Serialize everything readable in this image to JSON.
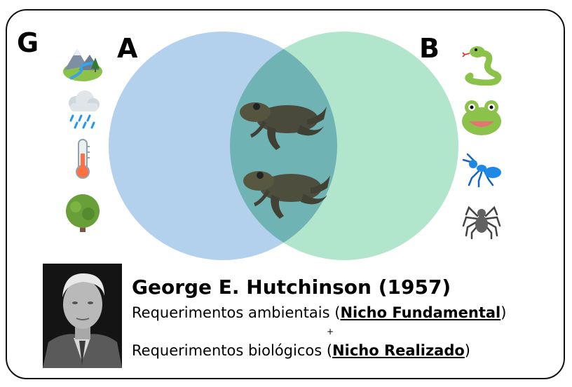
{
  "labels": {
    "g": "G",
    "a": "A",
    "b": "B"
  },
  "colors": {
    "circle_a": "#9dc3e6",
    "circle_b": "#94dfb8",
    "overlap": "#6fb0b0",
    "frame": "#111111"
  },
  "environmental_icons": [
    "landscape-icon",
    "rain-cloud-icon",
    "thermometer-icon",
    "tree-icon"
  ],
  "biotic_icons": [
    "snake-icon",
    "frog-face-icon",
    "ant-icon",
    "spider-icon"
  ],
  "center_icons": [
    "frog-icon",
    "frog-icon"
  ],
  "caption": {
    "title": "George E. Hutchinson (1957)",
    "line1_prefix": "Requerimentos ambientais (",
    "line1_term": "Nicho Fundamental",
    "line1_suffix": ")",
    "plus": "+",
    "line2_prefix": "Requerimentos biológicos (",
    "line2_term": "Nicho Realizado",
    "line2_suffix": ")"
  }
}
